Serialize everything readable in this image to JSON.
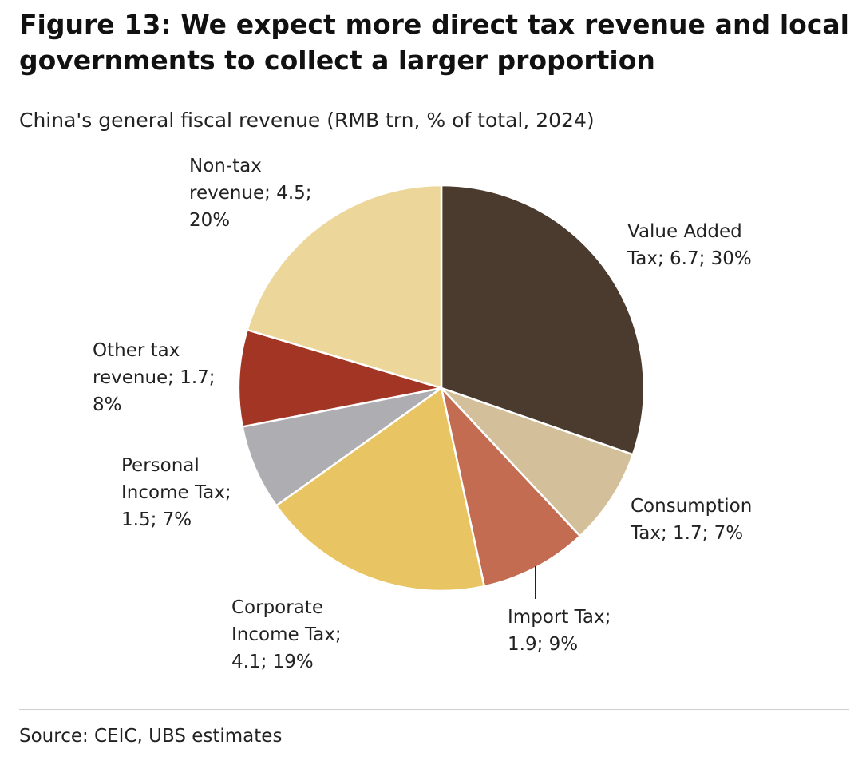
{
  "figure": {
    "title": "Figure 13: We expect more direct tax revenue and local governments to collect a larger proportion",
    "source": "Source: CEIC, UBS estimates"
  },
  "chart_data": {
    "type": "pie",
    "title": "China's general fiscal revenue (RMB trn, % of total, 2024)",
    "start_angle_deg": 0,
    "direction": "clockwise",
    "slices": [
      {
        "label": "Value Added Tax",
        "value": 6.7,
        "percent": 30,
        "data_label": "Value Added Tax; 6.7; 30%",
        "color": "#4a3b2e"
      },
      {
        "label": "Consumption Tax",
        "value": 1.7,
        "percent": 7,
        "data_label": "Consumption Tax; 1.7; 7%",
        "color": "#d3c09b"
      },
      {
        "label": "Import Tax",
        "value": 1.9,
        "percent": 9,
        "data_label": "Import Tax; 1.9; 9%",
        "color": "#c36c52"
      },
      {
        "label": "Corporate Income Tax",
        "value": 4.1,
        "percent": 19,
        "data_label": "Corporate Income Tax; 4.1; 19%",
        "color": "#e8c462"
      },
      {
        "label": "Personal Income Tax",
        "value": 1.5,
        "percent": 7,
        "data_label": "Personal Income Tax; 1.5; 7%",
        "color": "#aeaeb2"
      },
      {
        "label": "Other tax revenue",
        "value": 1.7,
        "percent": 8,
        "data_label": "Other tax revenue; 1.7; 8%",
        "color": "#a23524"
      },
      {
        "label": "Non-tax revenue",
        "value": 4.5,
        "percent": 20,
        "data_label": "Non-tax revenue; 4.5; 20%",
        "color": "#ecd69a"
      }
    ]
  }
}
